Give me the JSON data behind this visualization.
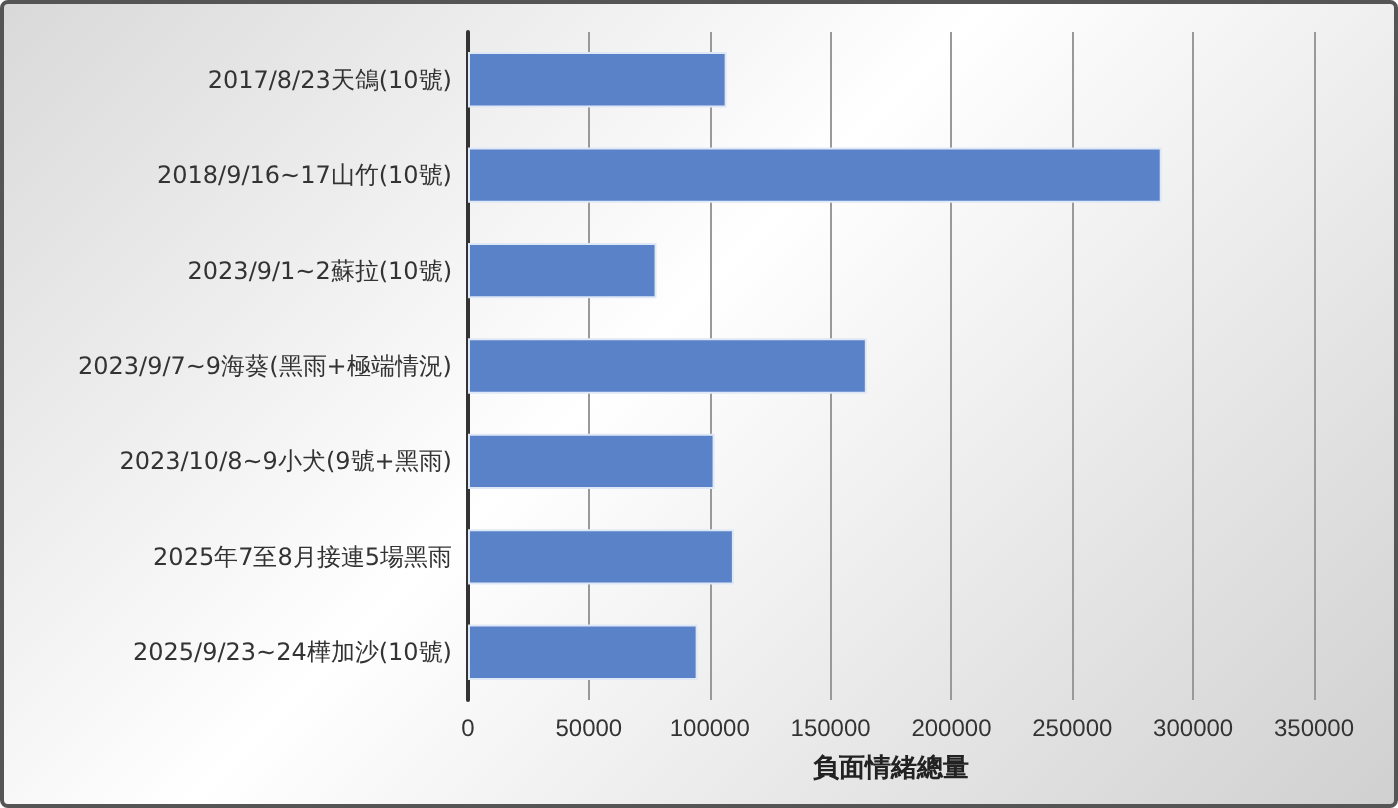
{
  "chart_data": {
    "type": "bar",
    "orientation": "horizontal",
    "xlabel": "負面情緒總量",
    "categories": [
      "2017/8/23天鴿(10號)",
      "2018/9/16~17山竹(10號)",
      "2023/9/1~2蘇拉(10號)",
      "2023/9/7~9海葵(黑雨+極端情況)",
      "2023/10/8~9小犬(9號+黑雨)",
      "2025年7至8月接連5場黑雨",
      "2025/9/23~24樺加沙(10號)"
    ],
    "values": [
      107000,
      287000,
      78000,
      165000,
      102000,
      110000,
      95000
    ],
    "color": "#5a82c8",
    "xlim": [
      0,
      350000
    ],
    "xticks": [
      0,
      50000,
      100000,
      150000,
      200000,
      250000,
      300000,
      350000
    ],
    "grid": "x"
  }
}
